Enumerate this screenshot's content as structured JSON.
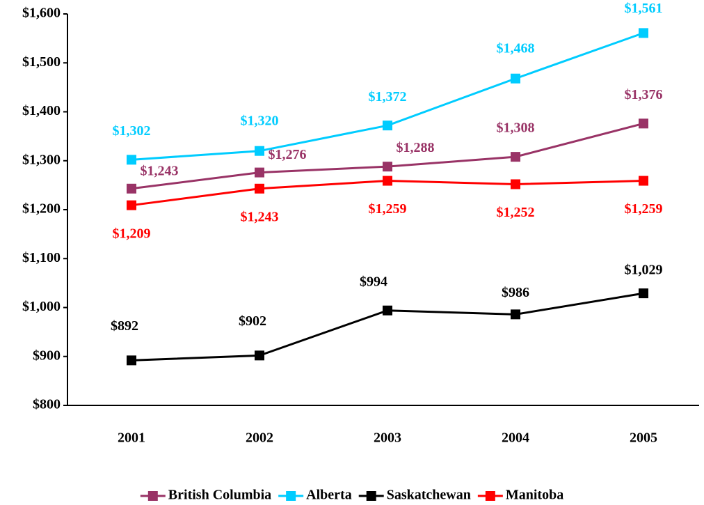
{
  "chart_data": {
    "type": "line",
    "categories": [
      "2001",
      "2002",
      "2003",
      "2004",
      "2005"
    ],
    "series": [
      {
        "name": "British Columbia",
        "color": "#993366",
        "values": [
          1243,
          1276,
          1288,
          1308,
          1376
        ],
        "value_labels": [
          "$1,243",
          "$1,276",
          "$1,288",
          "$1,308",
          "$1,376"
        ]
      },
      {
        "name": "Alberta",
        "color": "#00ccff",
        "values": [
          1302,
          1320,
          1372,
          1468,
          1561
        ],
        "value_labels": [
          "$1,302",
          "$1,320",
          "$1,372",
          "$1,468",
          "$1,561"
        ]
      },
      {
        "name": "Saskatchewan",
        "color": "#000000",
        "values": [
          892,
          902,
          994,
          986,
          1029
        ],
        "value_labels": [
          "$892",
          "$902",
          "$994",
          "$986",
          "$1,029"
        ]
      },
      {
        "name": "Manitoba",
        "color": "#ff0000",
        "values": [
          1209,
          1243,
          1259,
          1252,
          1259
        ],
        "value_labels": [
          "$1,209",
          "$1,243",
          "$1,259",
          "$1,252",
          "$1,259"
        ]
      }
    ],
    "ylim": [
      800,
      1600
    ],
    "yticks": [
      {
        "value": 800,
        "label": "$800"
      },
      {
        "value": 900,
        "label": "$900"
      },
      {
        "value": 1000,
        "label": "$1,000"
      },
      {
        "value": 1100,
        "label": "$1,100"
      },
      {
        "value": 1200,
        "label": "$1,200"
      },
      {
        "value": 1300,
        "label": "$1,300"
      },
      {
        "value": 1400,
        "label": "$1,400"
      },
      {
        "value": 1500,
        "label": "$1,500"
      },
      {
        "value": 1600,
        "label": "$1,600"
      }
    ],
    "legend": "bottom"
  }
}
